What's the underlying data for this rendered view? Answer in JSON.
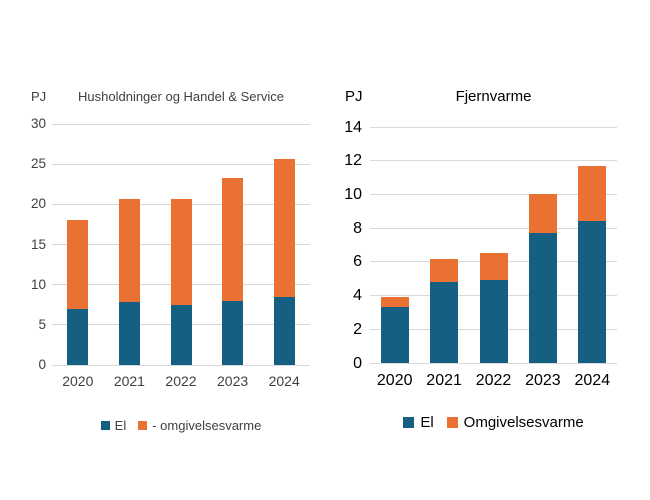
{
  "colors": {
    "el": "#156082",
    "omgivelsesvarme": "#E97132",
    "gridline": "#D9D9D9",
    "left_chart_text": "#404040",
    "right_chart_text": "#000000",
    "background": "#ffffff"
  },
  "chart_data": [
    {
      "type": "bar",
      "stacked": true,
      "title": "Husholdninger og Handel & Service",
      "unit": "PJ",
      "categories": [
        "2020",
        "2021",
        "2022",
        "2023",
        "2024"
      ],
      "series": [
        {
          "name": "El",
          "color": "#156082",
          "values": [
            7.0,
            7.8,
            7.5,
            8.0,
            8.5
          ]
        },
        {
          "name": "- omgivelsesvarme",
          "color": "#E97132",
          "values": [
            11.1,
            12.9,
            13.2,
            15.3,
            17.2
          ]
        }
      ],
      "totals": [
        18.1,
        20.7,
        20.7,
        23.3,
        25.7
      ],
      "ylim": [
        0,
        30
      ],
      "yticks": [
        0,
        5,
        10,
        15,
        20,
        25,
        30
      ],
      "grid": true,
      "legend_position": "bottom"
    },
    {
      "type": "bar",
      "stacked": true,
      "title": "Fjernvarme",
      "unit": "PJ",
      "categories": [
        "2020",
        "2021",
        "2022",
        "2023",
        "2024"
      ],
      "series": [
        {
          "name": "El",
          "color": "#156082",
          "values": [
            3.3,
            4.8,
            4.9,
            7.7,
            8.4
          ]
        },
        {
          "name": "Omgivelsesvarme",
          "color": "#E97132",
          "values": [
            0.6,
            1.4,
            1.6,
            2.3,
            3.3
          ]
        }
      ],
      "totals": [
        3.9,
        6.2,
        6.5,
        10.0,
        11.7
      ],
      "ylim": [
        0,
        14
      ],
      "yticks": [
        0,
        2,
        4,
        6,
        8,
        10,
        12,
        14
      ],
      "grid": true,
      "legend_position": "bottom"
    }
  ]
}
